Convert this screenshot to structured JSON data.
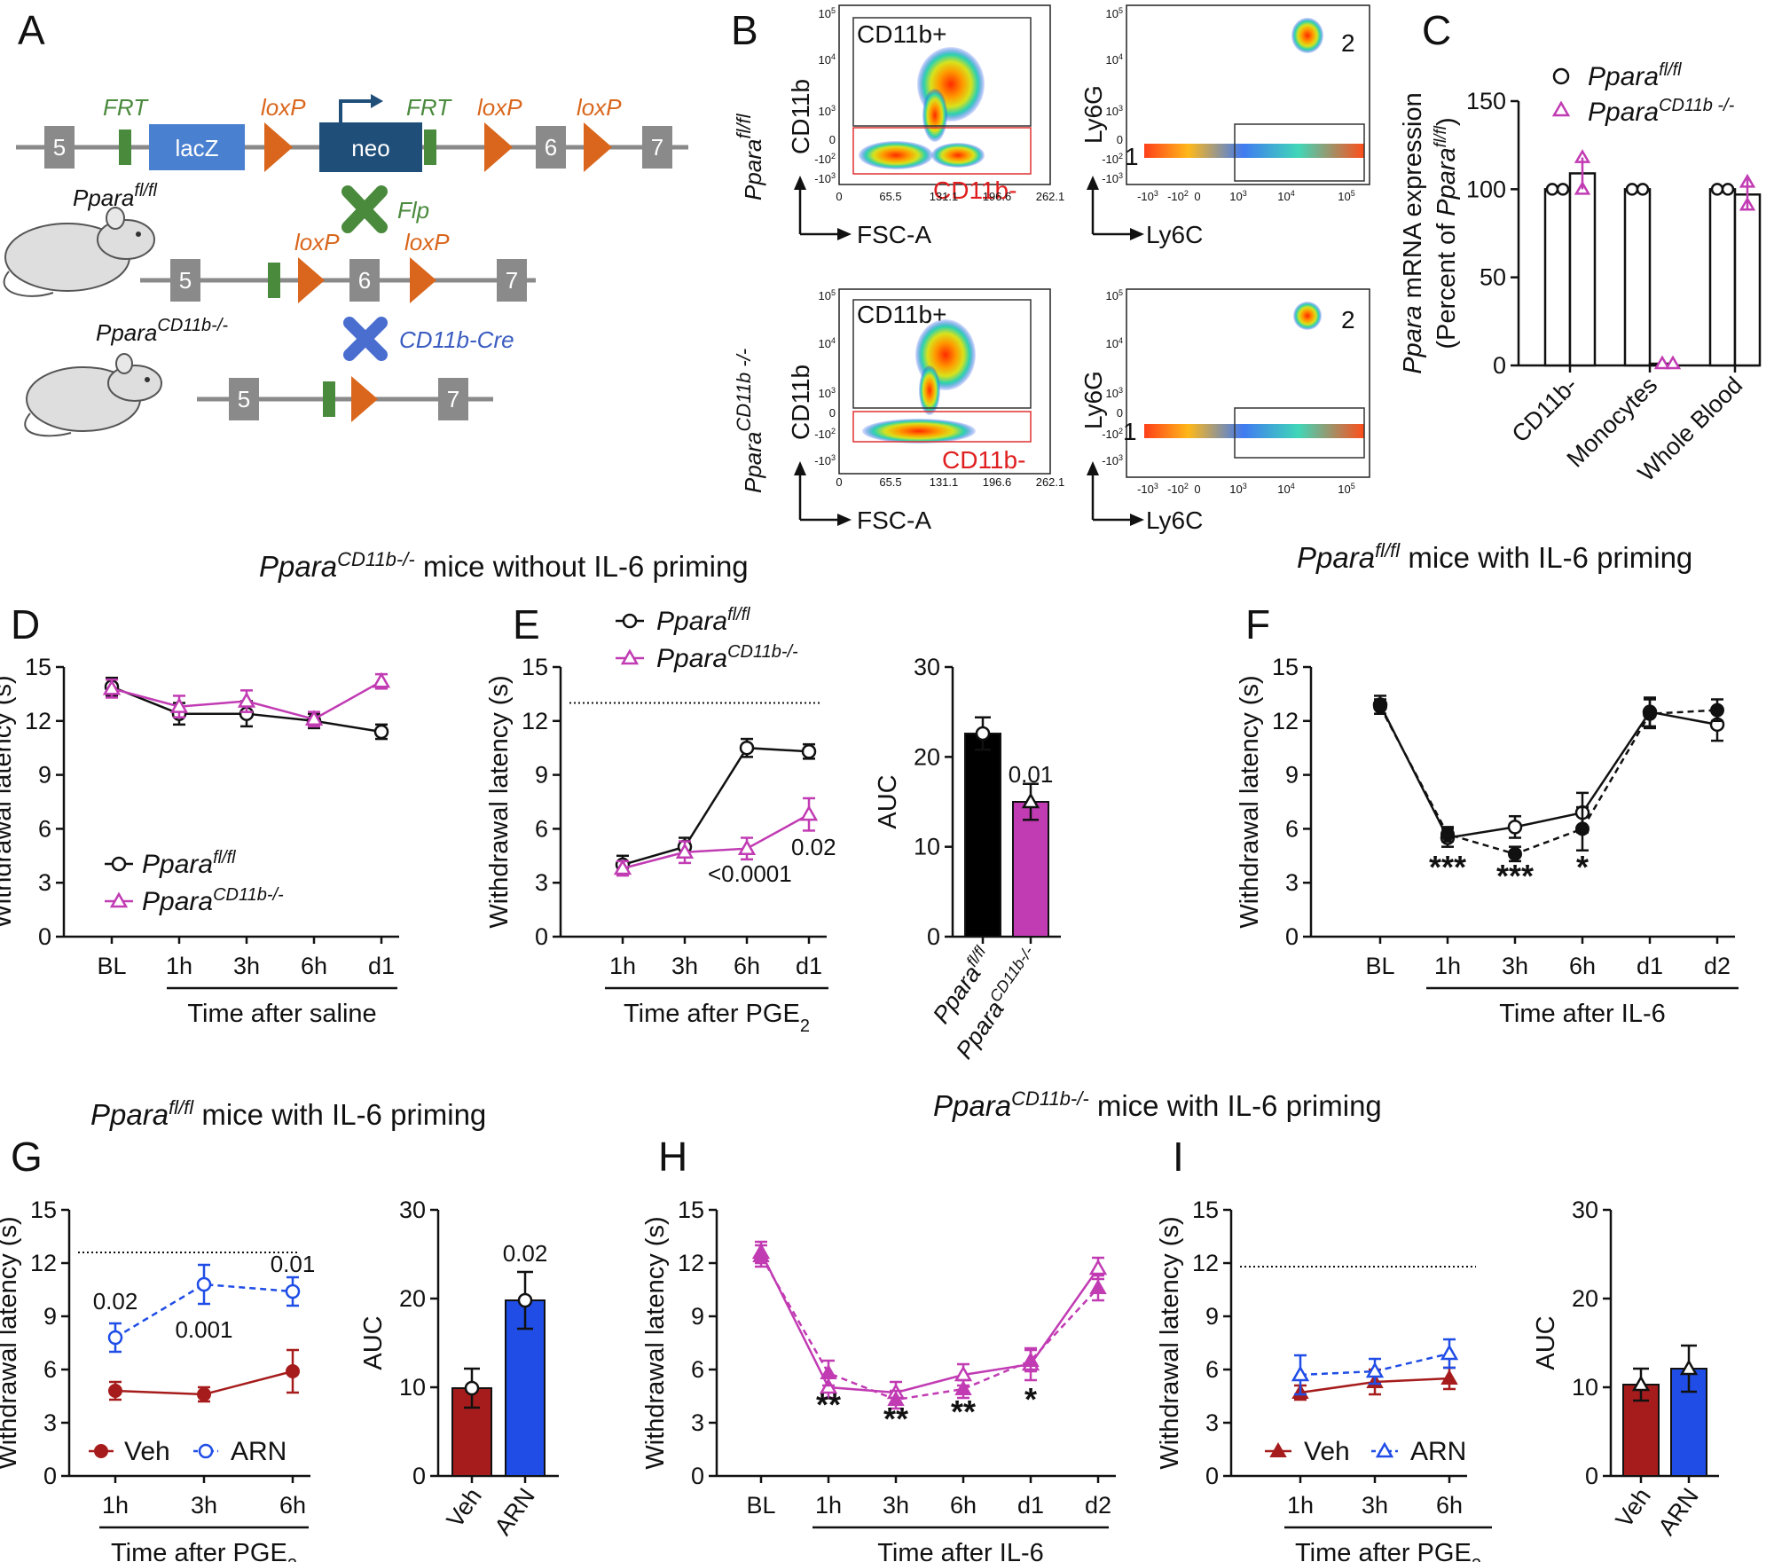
{
  "panels": {
    "A": "A",
    "B": "B",
    "C": "C",
    "D": "D",
    "E": "E",
    "F": "F",
    "G": "G",
    "H": "H",
    "I": "I"
  },
  "colors": {
    "fl": "#111111",
    "ko": "#c13bb3",
    "veh": "#a61c1c",
    "arn": "#1f4de6",
    "frt": "#4a8a3c",
    "loxp": "#d9661c",
    "lacz": "#4a80d0",
    "neo": "#1f4e79",
    "exon": "#8a8a8a"
  },
  "titles": {
    "t1_gene": "Ppara",
    "t1_sup": "CD11b-/-",
    "t1_rest": " mice without IL-6 priming",
    "t2_gene": "Ppara",
    "t2_sup": "fl/fl",
    "t2_rest": " mice with IL-6  priming",
    "t3_gene": "Ppara",
    "t3_sup": "fl/fl",
    "t3_rest": " mice with IL-6  priming",
    "t4_gene": "Ppara",
    "t4_sup": "CD11b-/-",
    "t4_rest": " mice with IL-6  priming"
  },
  "schematic": {
    "exons_top": [
      "5",
      "6",
      "7"
    ],
    "lacz": "lacZ",
    "neo": "neo",
    "frt": "FRT",
    "loxp": "loxP",
    "flp": "Flp",
    "cre": "CD11b-Cre",
    "mouse1_gene": "Ppara",
    "mouse1_sup": "fl/fl",
    "mouse2_gene": "Ppara",
    "mouse2_sup": "CD11b-/-",
    "exons_mid": [
      "5",
      "6",
      "7"
    ],
    "exons_bot": [
      "5",
      "7"
    ]
  },
  "flow": {
    "row1_gene": "Ppara",
    "row1_sup": "fl/fl",
    "row2_gene": "Ppara",
    "row2_sup": "CD11b -/-",
    "y_label_left": "CD11b",
    "x_label_left": "FSC-A",
    "y_label_right": "Ly6G",
    "x_label_right": "Ly6C",
    "gate_pos": "CD11b+",
    "gate_neg": "CD11b-",
    "pop1": "1",
    "pop2": "2",
    "fsc_ticks": [
      "0",
      "65.5",
      "131.1",
      "196.6",
      "262.1"
    ],
    "cd11b_ticks": [
      "10",
      "10",
      "10",
      "0",
      "-10",
      "-10"
    ],
    "cd11b_exps": [
      "5",
      "4",
      "3",
      "",
      "2",
      "3"
    ],
    "ly6c_ticks": [
      "-10",
      "-10",
      "0",
      "10",
      "10",
      "10"
    ],
    "ly6c_exps": [
      "3",
      "2",
      "",
      "3",
      "4",
      "5"
    ]
  },
  "chart_data": [
    {
      "panel": "C",
      "type": "bar",
      "ylabel_gene": "Ppara",
      "ylabel_rest": " mRNA expression",
      "ylabel2_pre": "(Percent of ",
      "ylabel2_gene": "Ppara",
      "ylabel2_sup": "fl/fl",
      "ylabel2_post": ")",
      "ylim": [
        0,
        150
      ],
      "yticks": [
        "0",
        "50",
        "100",
        "150"
      ],
      "categories": [
        "CD11b-",
        "Monocytes",
        "Whole Blood"
      ],
      "legend": [
        {
          "gene": "Ppara",
          "sup": "fl/fl"
        },
        {
          "gene": "Ppara",
          "sup": "CD11b -/-"
        }
      ],
      "series": [
        {
          "name": "Ppara fl/fl",
          "values": [
            100,
            100,
            100
          ]
        },
        {
          "name": "Ppara CD11b-/-",
          "values": [
            109,
            1,
            97
          ]
        }
      ]
    },
    {
      "panel": "D",
      "type": "line",
      "ylabel": "Withdrawal latency (s)",
      "xlabel": "Time after saline",
      "ylim": [
        0,
        15
      ],
      "yticks": [
        "0",
        "3",
        "6",
        "9",
        "12",
        "15"
      ],
      "categories": [
        "BL",
        "1h",
        "3h",
        "6h",
        "d1"
      ],
      "legend": [
        {
          "gene": "Ppara",
          "sup": "fl/fl"
        },
        {
          "gene": "Ppara",
          "sup": "CD11b-/-"
        }
      ],
      "series": [
        {
          "name": "Ppara fl/fl",
          "values": [
            13.9,
            12.4,
            12.4,
            12.0,
            11.4
          ],
          "err": [
            0.5,
            0.6,
            0.7,
            0.4,
            0.4
          ]
        },
        {
          "name": "Ppara CD11b-/-",
          "values": [
            13.8,
            12.8,
            13.1,
            12.1,
            14.2
          ],
          "err": [
            0.5,
            0.6,
            0.6,
            0.4,
            0.4
          ]
        }
      ]
    },
    {
      "panel": "E",
      "type": "line",
      "ylabel": "Withdrawal latency (s)",
      "xlabel": "Time after PGE",
      "xlabel_sub": "2",
      "ylim": [
        0,
        15
      ],
      "yticks": [
        "0",
        "3",
        "6",
        "9",
        "12",
        "15"
      ],
      "categories": [
        "1h",
        "3h",
        "6h",
        "d1"
      ],
      "baseline": 13,
      "legend": [
        {
          "gene": "Ppara",
          "sup": "fl/fl"
        },
        {
          "gene": "Ppara",
          "sup": "CD11b-/-"
        }
      ],
      "annotations": [
        "<0.0001",
        "0.02"
      ],
      "series": [
        {
          "name": "Ppara fl/fl",
          "values": [
            4.0,
            5.0,
            10.5,
            10.3
          ],
          "err": [
            0.5,
            0.5,
            0.5,
            0.4
          ]
        },
        {
          "name": "Ppara CD11b-/-",
          "values": [
            3.8,
            4.7,
            4.9,
            6.8
          ],
          "err": [
            0.4,
            0.6,
            0.6,
            0.9
          ]
        }
      ]
    },
    {
      "panel": "E-AUC",
      "type": "bar",
      "ylabel": "AUC",
      "ylim": [
        0,
        30
      ],
      "yticks": [
        "0",
        "10",
        "20",
        "30"
      ],
      "categories": [
        {
          "gene": "Ppara",
          "sup": "fl/fl"
        },
        {
          "gene": "Ppara",
          "sup": "CD11b-/-"
        }
      ],
      "values": [
        22.6,
        15.0
      ],
      "err": [
        1.8,
        2.0
      ],
      "annotations": [
        "0.01"
      ]
    },
    {
      "panel": "F",
      "type": "line",
      "ylabel": "Withdrawal latency (s)",
      "xlabel": "Time after IL-6",
      "ylim": [
        0,
        15
      ],
      "yticks": [
        "0",
        "3",
        "6",
        "9",
        "12",
        "15"
      ],
      "categories": [
        "BL",
        "1h",
        "3h",
        "6h",
        "d1",
        "d2"
      ],
      "stars": [
        "***",
        "***",
        "*"
      ],
      "series": [
        {
          "name": "open",
          "values": [
            12.9,
            5.5,
            6.1,
            6.9,
            12.5,
            11.8
          ],
          "err": [
            0.5,
            0.5,
            0.6,
            1.1,
            0.8,
            0.9
          ]
        },
        {
          "name": "filled",
          "values": [
            12.8,
            5.7,
            4.6,
            6.0,
            12.4,
            12.6
          ],
          "err": [
            0.4,
            0.4,
            0.4,
            1.2,
            0.8,
            0.6
          ]
        }
      ]
    },
    {
      "panel": "G",
      "type": "line",
      "ylabel": "Withdrawal latency (s)",
      "xlabel": "Time after PGE",
      "xlabel_sub": "2",
      "ylim": [
        0,
        15
      ],
      "yticks": [
        "0",
        "3",
        "6",
        "9",
        "12",
        "15"
      ],
      "categories": [
        "1h",
        "3h",
        "6h"
      ],
      "baseline": 12.6,
      "legend": [
        "Veh",
        "ARN"
      ],
      "annotations": [
        "0.02",
        "0.001",
        "0.01"
      ],
      "series": [
        {
          "name": "Veh",
          "values": [
            4.8,
            4.6,
            5.9
          ],
          "err": [
            0.5,
            0.4,
            1.2
          ]
        },
        {
          "name": "ARN",
          "values": [
            7.8,
            10.8,
            10.4
          ],
          "err": [
            0.8,
            1.1,
            0.8
          ]
        }
      ]
    },
    {
      "panel": "G-AUC",
      "type": "bar",
      "ylabel": "AUC",
      "ylim": [
        0,
        30
      ],
      "yticks": [
        "0",
        "10",
        "20",
        "30"
      ],
      "categories": [
        "Veh",
        "ARN"
      ],
      "values": [
        9.9,
        19.8
      ],
      "err": [
        2.2,
        3.2
      ],
      "annotations": [
        "0.02"
      ]
    },
    {
      "panel": "H",
      "type": "line",
      "ylabel": "Withdrawal latency (s)",
      "xlabel": "Time after IL-6",
      "ylim": [
        0,
        15
      ],
      "yticks": [
        "0",
        "3",
        "6",
        "9",
        "12",
        "15"
      ],
      "categories": [
        "BL",
        "1h",
        "3h",
        "6h",
        "d1",
        "d2"
      ],
      "stars": [
        "**",
        "**",
        "**",
        "*"
      ],
      "series": [
        {
          "name": "solid",
          "values": [
            12.6,
            5.0,
            4.7,
            5.7,
            6.3,
            11.7
          ],
          "err": [
            0.6,
            0.6,
            0.6,
            0.6,
            0.9,
            0.6
          ]
        },
        {
          "name": "dashed",
          "values": [
            12.4,
            5.8,
            4.3,
            4.9,
            6.5,
            10.6
          ],
          "err": [
            0.6,
            0.7,
            0.5,
            0.5,
            0.6,
            0.7
          ]
        }
      ]
    },
    {
      "panel": "I",
      "type": "line",
      "ylabel": "Withdrawal latency (s)",
      "xlabel": "Time after PGE",
      "xlabel_sub": "2",
      "ylim": [
        0,
        15
      ],
      "yticks": [
        "0",
        "3",
        "6",
        "9",
        "12",
        "15"
      ],
      "categories": [
        "1h",
        "3h",
        "6h"
      ],
      "baseline": 11.8,
      "legend": [
        "Veh",
        "ARN"
      ],
      "series": [
        {
          "name": "Veh",
          "values": [
            4.7,
            5.3,
            5.5
          ],
          "err": [
            0.4,
            0.7,
            0.6
          ]
        },
        {
          "name": "ARN",
          "values": [
            5.7,
            5.9,
            6.9
          ],
          "err": [
            1.1,
            0.7,
            0.8
          ]
        }
      ]
    },
    {
      "panel": "I-AUC",
      "type": "bar",
      "ylabel": "AUC",
      "ylim": [
        0,
        30
      ],
      "yticks": [
        "0",
        "10",
        "20",
        "30"
      ],
      "categories": [
        "Veh",
        "ARN"
      ],
      "values": [
        10.3,
        12.1
      ],
      "err": [
        1.8,
        2.6
      ]
    }
  ]
}
